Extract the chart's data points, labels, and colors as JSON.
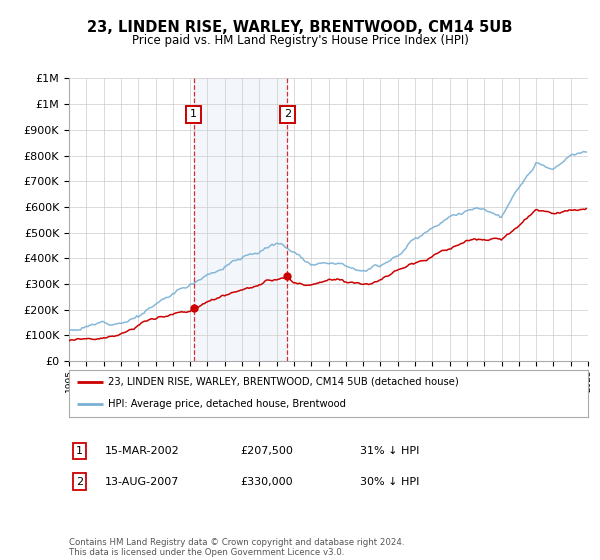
{
  "title": "23, LINDEN RISE, WARLEY, BRENTWOOD, CM14 5UB",
  "subtitle": "Price paid vs. HM Land Registry's House Price Index (HPI)",
  "background_color": "#ffffff",
  "plot_bg_color": "#ffffff",
  "grid_color": "#cccccc",
  "hpi_color": "#7ab0d4",
  "price_color": "#cc0000",
  "sale1_date_num": 2002.21,
  "sale1_label": "1",
  "sale1_price": 207500,
  "sale2_date_num": 2007.62,
  "sale2_label": "2",
  "sale2_price": 330000,
  "legend_line1": "23, LINDEN RISE, WARLEY, BRENTWOOD, CM14 5UB (detached house)",
  "legend_line2": "HPI: Average price, detached house, Brentwood",
  "table_row1": [
    "1",
    "15-MAR-2002",
    "£207,500",
    "31% ↓ HPI"
  ],
  "table_row2": [
    "2",
    "13-AUG-2007",
    "£330,000",
    "30% ↓ HPI"
  ],
  "footnote": "Contains HM Land Registry data © Crown copyright and database right 2024.\nThis data is licensed under the Open Government Licence v3.0.",
  "xmin": 1995,
  "xmax": 2025,
  "ymin": 0,
  "ymax": 1100000
}
